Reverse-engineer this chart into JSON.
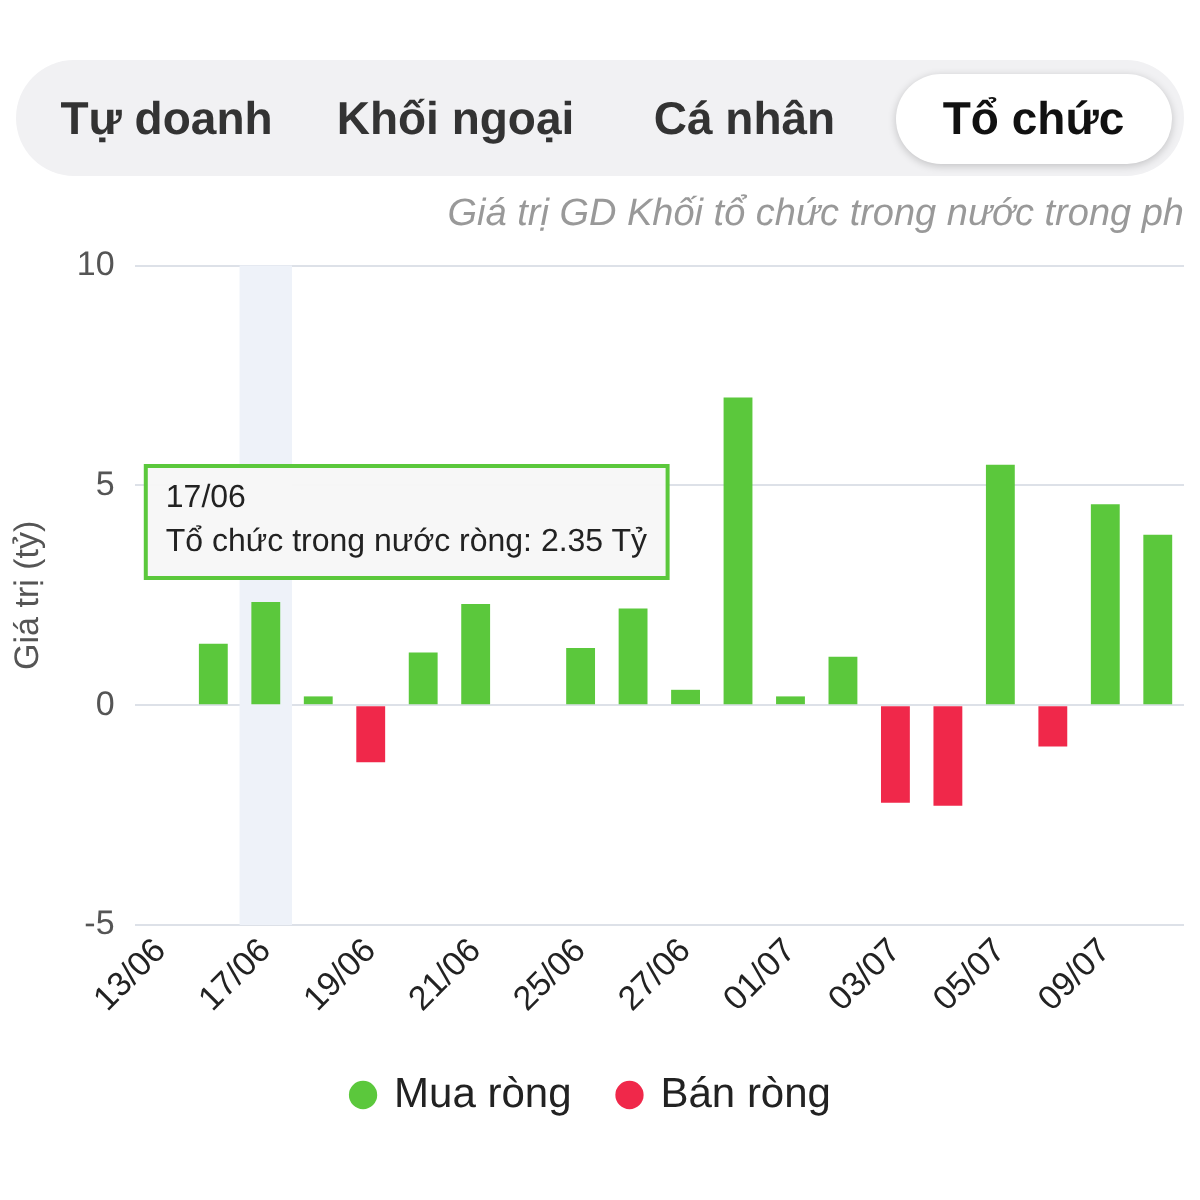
{
  "chart_data": {
    "type": "bar",
    "title": "Giá trị GD Khối tổ chức trong nước trong ph",
    "ylabel": "Giá trị (tỷ)",
    "categories": [
      "13/06",
      null,
      "17/06",
      null,
      "19/06",
      null,
      "21/06",
      null,
      "25/06",
      null,
      "27/06",
      null,
      "01/07",
      null,
      "03/07",
      null,
      "05/07",
      null,
      "09/07",
      null
    ],
    "series": [
      {
        "name": "Mua ròng",
        "color": "#5bc83c",
        "values": [
          null,
          1.4,
          2.35,
          0.2,
          null,
          1.2,
          2.3,
          null,
          1.3,
          2.2,
          0.35,
          7.0,
          0.2,
          1.1,
          null,
          null,
          5.47,
          null,
          4.57,
          3.88
        ]
      },
      {
        "name": "Bán ròng",
        "color": "#f0284a",
        "values": [
          null,
          null,
          null,
          null,
          -1.3,
          null,
          null,
          null,
          null,
          null,
          null,
          null,
          null,
          null,
          -2.22,
          -2.29,
          null,
          -0.94,
          null,
          null
        ]
      }
    ],
    "stacked": true,
    "ylim": [
      -5,
      10
    ],
    "yticks": [
      -5,
      0,
      5,
      10
    ],
    "grid": "y",
    "legend": "bottom",
    "bands": [
      {
        "axis": "x",
        "from": "17/06",
        "to": "17/06",
        "color": "#eef2f9"
      }
    ],
    "annotations": [
      "Tự doanh",
      "Khối ngoại",
      "Cá nhân",
      "Tổ chức",
      {
        "text": "17/06\nTổ chức trong nước ròng: 2.35 Tỷ",
        "x": "17/06",
        "y": 2.35
      }
    ]
  }
}
